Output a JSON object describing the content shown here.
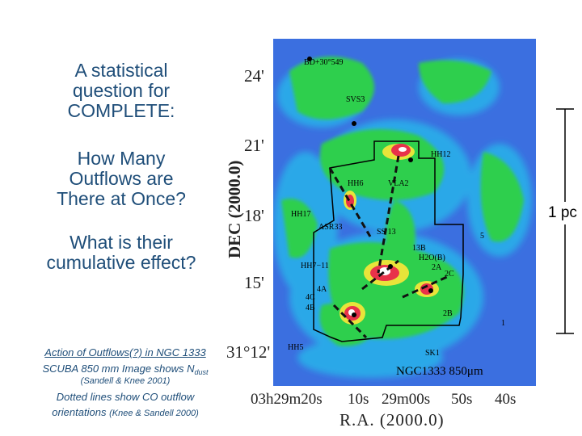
{
  "slide": {
    "question_title": [
      "A statistical",
      "question for",
      "COMPLETE:"
    ],
    "question_main": [
      "How Many",
      "Outflows are",
      "There at Once?"
    ],
    "question_effect": [
      "What is their",
      "cumulative effect?"
    ],
    "caption_action": "Action of Outflows(?) in NGC 1333",
    "caption_scuba": "SCUBA 850 mm Image shows N",
    "caption_scuba_sub": "dust",
    "caption_ref1": "(Sandell & Knee 2001)",
    "caption_dotted": "Dotted lines show CO outflow",
    "caption_orient": "orientations",
    "caption_ref2": "(Knee & Sandell 2000)",
    "scale_label": "1 pc"
  },
  "figure": {
    "dec_axis_title": "DEC (2000.0)",
    "dec_ticks": [
      "24'",
      "21'",
      "18'",
      "15'",
      "31°12'"
    ],
    "ra_ticks": [
      "03h29m20s",
      "10s",
      "29m00s",
      "50s",
      "40s"
    ],
    "ra_axis_title": "R.A. (2000.0)",
    "map_title": "NGC1333 850μm",
    "source_labels": {
      "bd": "BD+30°549",
      "svs3": "SVS3",
      "hh12": "HH12",
      "hh6": "HH6",
      "vla2": "VLA2",
      "hh17": "HH17",
      "asr33": "ASR33",
      "ss13": "SS 13",
      "s5": "5",
      "s13b": "13B",
      "h2o": "H2O(B)",
      "s2a": "2A",
      "s2c": "2C",
      "hh7_11": "HH7−11",
      "s4a": "4A",
      "s4c": "4C",
      "s4b": "4B",
      "s2b": "2B",
      "s1": "1",
      "hh5": "HH5",
      "sk1": "SK1"
    },
    "colors": {
      "background": "#3b6fe0",
      "low": "#29a8e8",
      "mid": "#2ecf4e",
      "high": "#e8e43a",
      "peak": "#e8324a",
      "core": "#ffffff"
    }
  }
}
